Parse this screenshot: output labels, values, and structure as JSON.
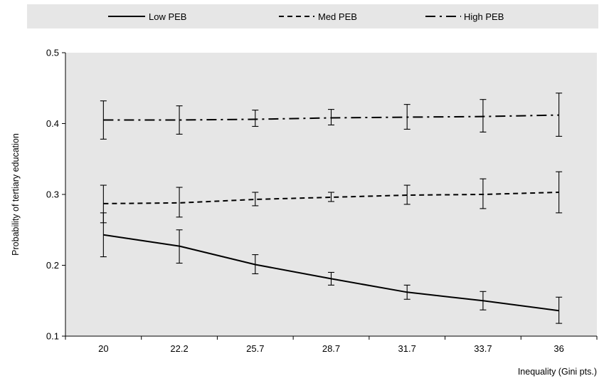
{
  "chart_data": {
    "type": "line",
    "categories": [
      "20",
      "22.2",
      "25.7",
      "28.7",
      "31.7",
      "33.7",
      "36"
    ],
    "xlabel": "Inequality  (Gini pts.)",
    "ylabel": "Probability  of tertiary  education",
    "ylim": [
      0.1,
      0.5
    ],
    "yticks": [
      "0.1",
      "0.2",
      "0.3",
      "0.4",
      "0.5"
    ],
    "grid": false,
    "legend_position": "top",
    "series": [
      {
        "name": "Low PEB",
        "dash": "solid",
        "values": [
          0.243,
          0.227,
          0.201,
          0.181,
          0.162,
          0.15,
          0.136
        ],
        "lower": [
          0.212,
          0.203,
          0.188,
          0.172,
          0.152,
          0.137,
          0.118
        ],
        "upper": [
          0.274,
          0.25,
          0.215,
          0.19,
          0.172,
          0.163,
          0.155
        ]
      },
      {
        "name": "Med PEB",
        "dash": "dashed",
        "values": [
          0.287,
          0.288,
          0.293,
          0.296,
          0.299,
          0.3,
          0.303
        ],
        "lower": [
          0.26,
          0.268,
          0.284,
          0.29,
          0.286,
          0.28,
          0.274
        ],
        "upper": [
          0.313,
          0.31,
          0.303,
          0.303,
          0.313,
          0.322,
          0.332
        ]
      },
      {
        "name": "High PEB",
        "dash": "dashdot",
        "values": [
          0.405,
          0.405,
          0.406,
          0.408,
          0.409,
          0.41,
          0.412
        ],
        "lower": [
          0.378,
          0.385,
          0.396,
          0.398,
          0.392,
          0.388,
          0.382
        ],
        "upper": [
          0.432,
          0.425,
          0.419,
          0.42,
          0.427,
          0.434,
          0.443
        ]
      }
    ],
    "colors": {
      "legend_background": "#e6e6e6",
      "plot_background": "#e6e6e6",
      "line": "#000000"
    }
  }
}
